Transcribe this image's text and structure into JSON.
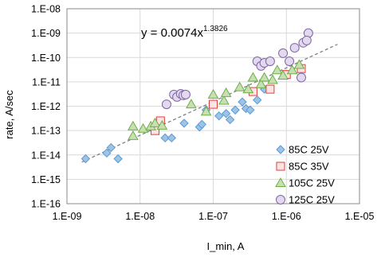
{
  "chart_data": {
    "type": "scatter",
    "xlabel": "I_min, A",
    "ylabel": "rate, A/sec",
    "x_scale": "log",
    "y_scale": "log",
    "xlim": [
      1e-09,
      1e-05
    ],
    "ylim": [
      1e-16,
      1e-08
    ],
    "x_ticks": [
      "1.E-09",
      "1.E-08",
      "1.E-07",
      "1.E-06",
      "1.E-05"
    ],
    "y_ticks": [
      "1.E-08",
      "1.E-09",
      "1.E-10",
      "1.E-11",
      "1.E-12",
      "1.E-13",
      "1.E-14",
      "1.E-15",
      "1.E-16"
    ],
    "grid": true,
    "legend_position": "bottom-right",
    "trendline": {
      "equation_base": "y = 0.0074x",
      "equation_exponent": "1.3826",
      "coefficient": 0.0074,
      "exponent": 1.3826,
      "x_range": [
        1.6e-09,
        5e-06
      ],
      "style": "dashed",
      "color": "#808080"
    },
    "series": [
      {
        "name": "85C 25V",
        "marker": "diamond",
        "color": "#5b9bd5",
        "fill": "#9dc3e6",
        "points": [
          [
            1.8e-09,
            7e-15
          ],
          [
            3.5e-09,
            1.2e-14
          ],
          [
            4e-09,
            2e-14
          ],
          [
            5e-09,
            7e-15
          ],
          [
            2.2e-08,
            5e-14
          ],
          [
            2.7e-08,
            5e-14
          ],
          [
            4e-08,
            2e-13
          ],
          [
            6.5e-08,
            1.4e-13
          ],
          [
            7e-08,
            1.8e-13
          ],
          [
            8e-08,
            7e-13
          ],
          [
            1.2e-07,
            4e-13
          ],
          [
            1.5e-07,
            5e-13
          ],
          [
            1.7e-07,
            2.8e-13
          ],
          [
            2e-07,
            7e-13
          ],
          [
            2.5e-07,
            1.5e-12
          ],
          [
            2.8e-07,
            8e-13
          ],
          [
            3.2e-07,
            7e-13
          ],
          [
            4e-07,
            1.8e-12
          ],
          [
            5e-07,
            5e-12
          ]
        ]
      },
      {
        "name": "85C 35V",
        "marker": "square",
        "color": "#e0403a",
        "fill": "#fce4e4",
        "points": [
          [
            1.6e-08,
            1e-13
          ],
          [
            1.9e-08,
            2.5e-13
          ],
          [
            1e-07,
            1.2e-12
          ],
          [
            3.5e-07,
            4e-12
          ],
          [
            6e-07,
            5e-12
          ],
          [
            1e-06,
            2e-11
          ],
          [
            1.6e-06,
            3.5e-11
          ]
        ]
      },
      {
        "name": "105C 25V",
        "marker": "triangle",
        "color": "#70ad47",
        "fill": "#c6e0b4",
        "points": [
          [
            8e-09,
            6e-14
          ],
          [
            8e-09,
            1.5e-13
          ],
          [
            1.1e-08,
            1.2e-13
          ],
          [
            1.4e-08,
            1.5e-13
          ],
          [
            1.6e-08,
            2e-13
          ],
          [
            2e-08,
            1.6e-13
          ],
          [
            5e-08,
            1.2e-12
          ],
          [
            8e-08,
            6e-13
          ],
          [
            1e-07,
            3e-12
          ],
          [
            1.4e-07,
            1.7e-12
          ],
          [
            1.5e-07,
            3.5e-12
          ],
          [
            2.3e-07,
            6e-12
          ],
          [
            3e-07,
            5e-12
          ],
          [
            3.5e-07,
            1.5e-11
          ],
          [
            4.5e-07,
            8e-12
          ],
          [
            5e-07,
            1.5e-11
          ],
          [
            6.5e-07,
            1.2e-11
          ],
          [
            7.5e-07,
            3e-11
          ],
          [
            9e-07,
            1.8e-11
          ],
          [
            1.2e-06,
            3e-11
          ],
          [
            1.5e-06,
            5e-11
          ]
        ]
      },
      {
        "name": "125C 25V",
        "marker": "circle",
        "color": "#8064a2",
        "fill": "#e2d9f0",
        "points": [
          [
            2.3e-08,
            1.2e-12
          ],
          [
            2.9e-08,
            3e-12
          ],
          [
            3.2e-08,
            2.4e-12
          ],
          [
            3.6e-08,
            3.2e-12
          ],
          [
            3.9e-08,
            2.8e-12
          ],
          [
            4.2e-08,
            3e-12
          ],
          [
            4e-07,
            7e-11
          ],
          [
            4.5e-07,
            4.5e-11
          ],
          [
            5e-07,
            6e-11
          ],
          [
            6e-07,
            7e-11
          ],
          [
            9e-07,
            1.5e-10
          ],
          [
            1.1e-06,
            7e-11
          ],
          [
            1.3e-06,
            2.5e-10
          ],
          [
            1.6e-06,
            1.5e-11
          ],
          [
            1.7e-06,
            4e-10
          ],
          [
            2e-06,
            1e-09
          ],
          [
            1.9e-06,
            5e-10
          ]
        ]
      }
    ]
  }
}
